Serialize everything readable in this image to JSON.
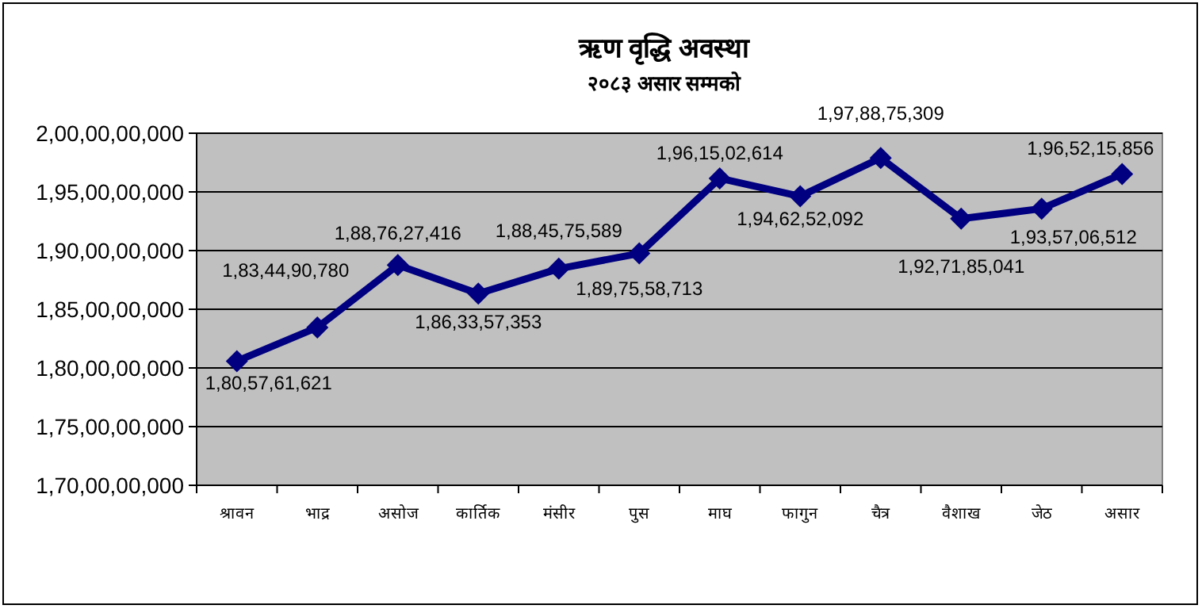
{
  "chart_data": {
    "type": "line",
    "title": "ऋण वृद्धि अवस्था",
    "subtitle": "२०८३ असार सम्मको",
    "categories": [
      "श्रावन",
      "भाद्र",
      "असोज",
      "कार्तिक",
      "मंसीर",
      "पुस",
      "माघ",
      "फागुन",
      "चैत्र",
      "वैशाख",
      "जेठ",
      "असार"
    ],
    "series": [
      {
        "color": "#000080",
        "values": [
          1805761621,
          1834490780,
          1887627416,
          1863357353,
          1884575589,
          1897558713,
          1961502614,
          1946252092,
          1978875309,
          1927185041,
          1935706512,
          1965215856
        ],
        "value_labels": [
          "1,80,57,61,621",
          "1,83,44,90,780",
          "1,88,76,27,416",
          "1,86,33,57,353",
          "1,88,45,75,589",
          "1,89,75,58,713",
          "1,96,15,02,614",
          "1,94,62,52,092",
          "1,97,88,75,309",
          "1,92,71,85,041",
          "1,93,57,06,512",
          "1,96,52,15,856"
        ]
      }
    ],
    "ylim": [
      1700000000,
      2000000000
    ],
    "yticks": [
      {
        "value": 1700000000,
        "label": "1,70,00,00,000"
      },
      {
        "value": 1750000000,
        "label": "1,75,00,00,000"
      },
      {
        "value": 1800000000,
        "label": "1,80,00,00,000"
      },
      {
        "value": 1850000000,
        "label": "1,85,00,00,000"
      },
      {
        "value": 1900000000,
        "label": "1,90,00,00,000"
      },
      {
        "value": 1950000000,
        "label": "1,95,00,00,000"
      },
      {
        "value": 2000000000,
        "label": "2,00,00,00,000"
      }
    ],
    "grid": "y",
    "marker": "diamond",
    "line_style": "solid"
  }
}
